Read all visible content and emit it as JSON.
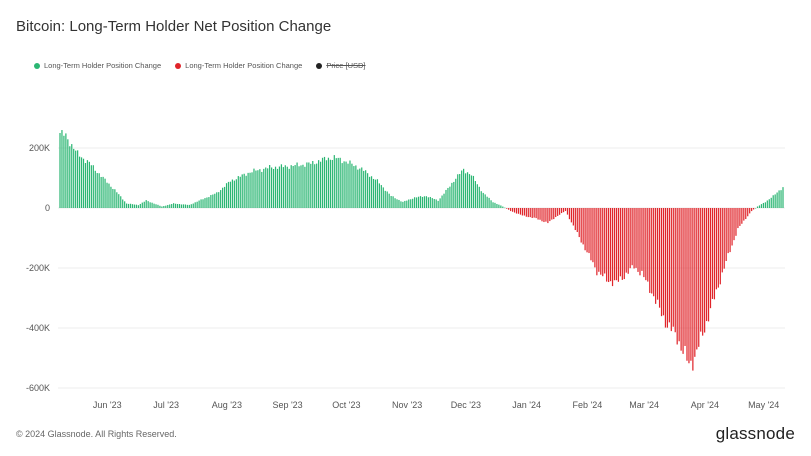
{
  "title": "Bitcoin: Long-Term Holder Net Position Change",
  "legend": [
    {
      "label": "Long-Term Holder Position Change",
      "color": "#2bb673",
      "struck": false
    },
    {
      "label": "Long-Term Holder Position Change",
      "color": "#e0242a",
      "struck": false
    },
    {
      "label": "Price [USD]",
      "color": "#222222",
      "struck": true
    }
  ],
  "footer": "© 2024 Glassnode. All Rights Reserved.",
  "brand": "glassnode",
  "chart_data": {
    "type": "bar",
    "title": "Bitcoin: Long-Term Holder Net Position Change",
    "ylim": [
      -600000,
      300000
    ],
    "y_ticks": [
      200000,
      0,
      -200000,
      -400000,
      -600000
    ],
    "y_tick_labels": [
      "200K",
      "0",
      "-200K",
      "-400K",
      "-600K"
    ],
    "x_tick_labels": [
      "Jun '23",
      "Jul '23",
      "Aug '23",
      "Sep '23",
      "Oct '23",
      "Nov '23",
      "Dec '23",
      "Jan '24",
      "Feb '24",
      "Mar '24",
      "Apr '24",
      "May '24"
    ],
    "x_start": "2023-05-15",
    "positive_color": "#2bb673",
    "negative_color": "#e0242a",
    "grid": true,
    "legend_position": "top-left",
    "series_keypoints": [
      [
        "2023-05-15",
        250000
      ],
      [
        "2023-05-18",
        240000
      ],
      [
        "2023-05-24",
        180000
      ],
      [
        "2023-05-30",
        150000
      ],
      [
        "2023-06-06",
        100000
      ],
      [
        "2023-06-12",
        60000
      ],
      [
        "2023-06-18",
        15000
      ],
      [
        "2023-06-24",
        10000
      ],
      [
        "2023-06-28",
        25000
      ],
      [
        "2023-07-02",
        15000
      ],
      [
        "2023-07-06",
        5000
      ],
      [
        "2023-07-12",
        15000
      ],
      [
        "2023-07-20",
        10000
      ],
      [
        "2023-07-27",
        30000
      ],
      [
        "2023-08-03",
        50000
      ],
      [
        "2023-08-10",
        90000
      ],
      [
        "2023-08-20",
        120000
      ],
      [
        "2023-08-30",
        135000
      ],
      [
        "2023-09-10",
        140000
      ],
      [
        "2023-09-20",
        148000
      ],
      [
        "2023-09-28",
        165000
      ],
      [
        "2023-10-02",
        168000
      ],
      [
        "2023-10-08",
        155000
      ],
      [
        "2023-10-16",
        130000
      ],
      [
        "2023-10-24",
        90000
      ],
      [
        "2023-10-31",
        40000
      ],
      [
        "2023-11-06",
        20000
      ],
      [
        "2023-11-12",
        35000
      ],
      [
        "2023-11-18",
        40000
      ],
      [
        "2023-11-24",
        25000
      ],
      [
        "2023-11-29",
        65000
      ],
      [
        "2023-12-03",
        100000
      ],
      [
        "2023-12-07",
        128000
      ],
      [
        "2023-12-11",
        110000
      ],
      [
        "2023-12-17",
        50000
      ],
      [
        "2023-12-22",
        20000
      ],
      [
        "2023-12-27",
        5000
      ],
      [
        "2023-12-31",
        -10000
      ],
      [
        "2024-01-06",
        -25000
      ],
      [
        "2024-01-13",
        -35000
      ],
      [
        "2024-01-19",
        -50000
      ],
      [
        "2024-01-23",
        -30000
      ],
      [
        "2024-01-28",
        -10000
      ],
      [
        "2024-02-01",
        -60000
      ],
      [
        "2024-02-05",
        -110000
      ],
      [
        "2024-02-09",
        -160000
      ],
      [
        "2024-02-13",
        -210000
      ],
      [
        "2024-02-18",
        -240000
      ],
      [
        "2024-02-23",
        -250000
      ],
      [
        "2024-02-28",
        -220000
      ],
      [
        "2024-03-03",
        -195000
      ],
      [
        "2024-03-07",
        -220000
      ],
      [
        "2024-03-12",
        -280000
      ],
      [
        "2024-03-16",
        -340000
      ],
      [
        "2024-03-20",
        -390000
      ],
      [
        "2024-03-25",
        -430000
      ],
      [
        "2024-03-28",
        -480000
      ],
      [
        "2024-03-31",
        -520000
      ],
      [
        "2024-04-03",
        -500000
      ],
      [
        "2024-04-06",
        -440000
      ],
      [
        "2024-04-10",
        -360000
      ],
      [
        "2024-04-15",
        -260000
      ],
      [
        "2024-04-20",
        -160000
      ],
      [
        "2024-04-25",
        -70000
      ],
      [
        "2024-04-29",
        -35000
      ],
      [
        "2024-05-02",
        -10000
      ],
      [
        "2024-05-05",
        5000
      ],
      [
        "2024-05-09",
        20000
      ],
      [
        "2024-05-14",
        45000
      ],
      [
        "2024-05-18",
        70000
      ]
    ]
  }
}
